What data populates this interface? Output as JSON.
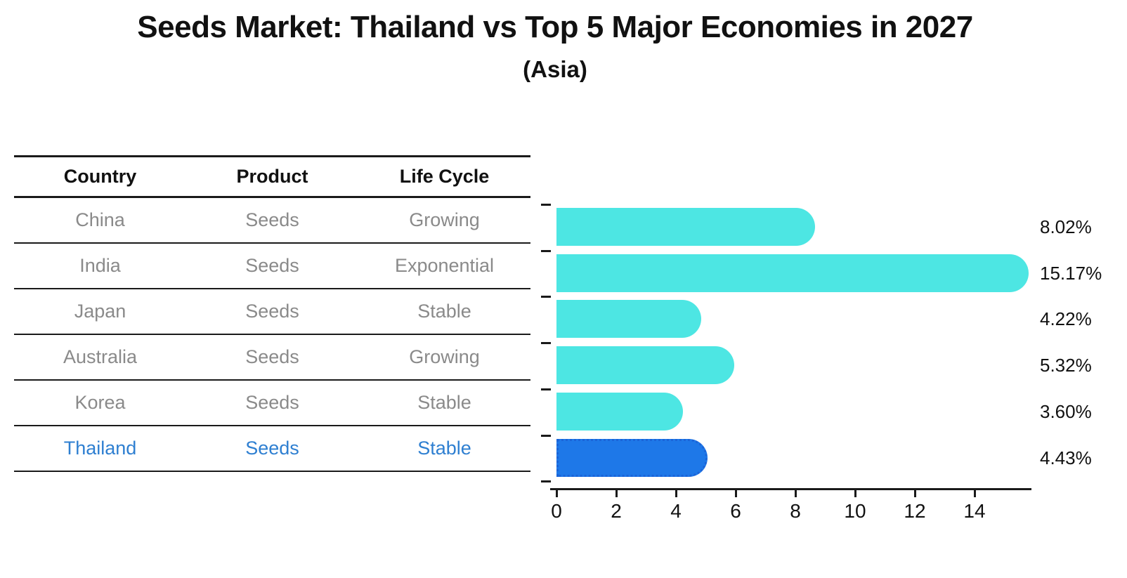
{
  "title": "Seeds Market: Thailand vs Top 5 Major Economies in 2027",
  "subtitle": "(Asia)",
  "table": {
    "headers": [
      "Country",
      "Product",
      "Life Cycle"
    ],
    "rows": [
      {
        "country": "China",
        "product": "Seeds",
        "life_cycle": "Growing",
        "highlighted": false
      },
      {
        "country": "India",
        "product": "Seeds",
        "life_cycle": "Exponential",
        "highlighted": false
      },
      {
        "country": "Japan",
        "product": "Seeds",
        "life_cycle": "Stable",
        "highlighted": false
      },
      {
        "country": "Australia",
        "product": "Seeds",
        "life_cycle": "Growing",
        "highlighted": false
      },
      {
        "country": "Korea",
        "product": "Seeds",
        "life_cycle": "Stable",
        "highlighted": false
      },
      {
        "country": "Thailand",
        "product": "Seeds",
        "life_cycle": "Stable",
        "highlighted": true
      }
    ]
  },
  "chart_data": {
    "type": "bar",
    "orientation": "horizontal",
    "title": "Seeds Market: Thailand vs Top 5 Major Economies in 2027",
    "subtitle": "(Asia)",
    "categories": [
      "China",
      "India",
      "Japan",
      "Australia",
      "Korea",
      "Thailand"
    ],
    "values": [
      8.02,
      15.17,
      4.22,
      5.32,
      3.6,
      4.43
    ],
    "value_labels": [
      "8.02%",
      "15.17%",
      "4.22%",
      "5.32%",
      "3.60%",
      "4.43%"
    ],
    "xlabel": "",
    "ylabel": "",
    "xlim": [
      0,
      15.9
    ],
    "xticks": [
      0,
      2,
      4,
      6,
      8,
      10,
      12,
      14
    ],
    "grid": false,
    "legend": false,
    "highlight_category": "Thailand",
    "colors": {
      "bar": "#4de6e3",
      "highlight_bar": "#1e78e8",
      "highlight_border": "#1b64d8",
      "highlight_text": "#2e7fd1",
      "table_text": "#8a8a8a",
      "header_text": "#111111",
      "axis": "#1a1a1a"
    }
  }
}
